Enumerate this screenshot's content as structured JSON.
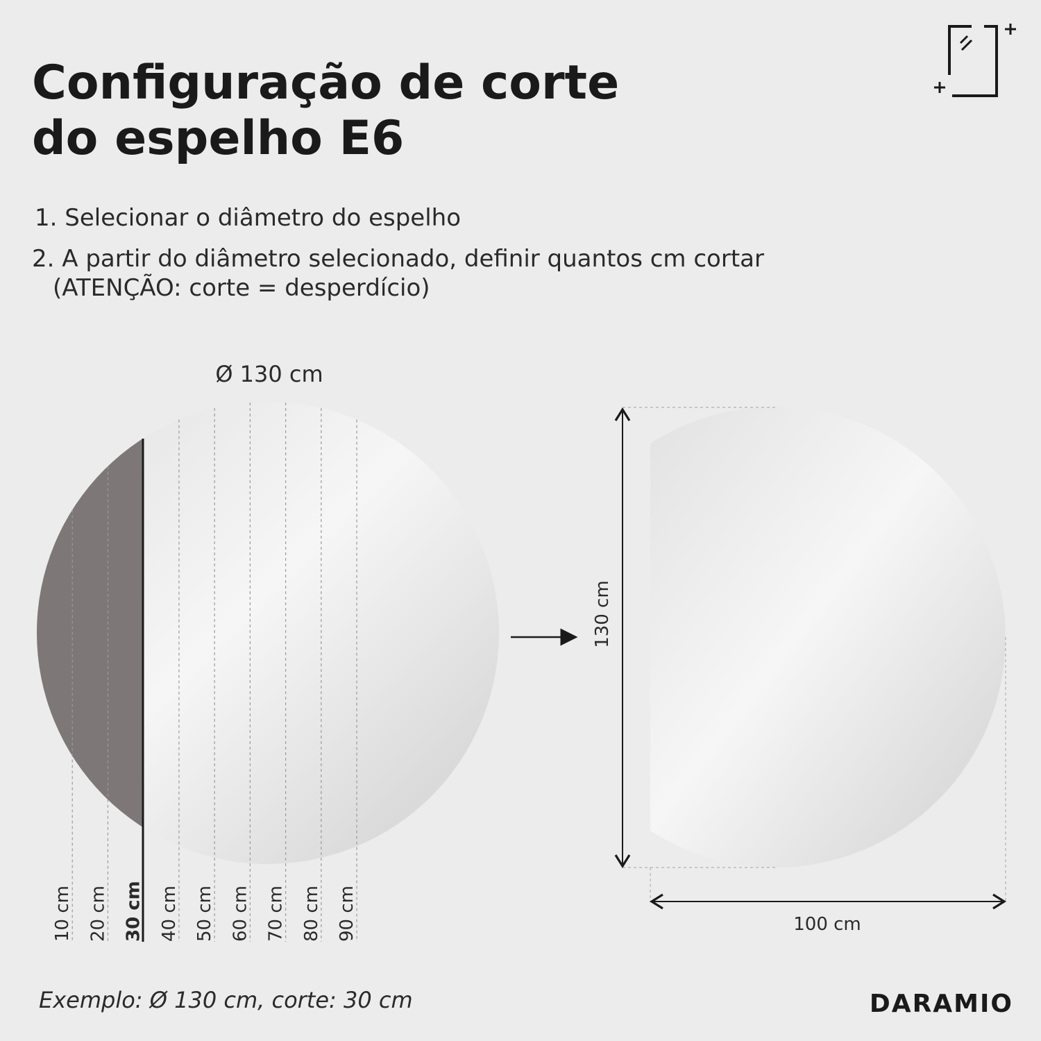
{
  "title": [
    "Configuração de corte",
    "do espelho E6"
  ],
  "steps": [
    "1. Selecionar o diâmetro do espelho",
    "2. A partir do diâmetro selecionado, definir quantos cm cortar",
    "(ATENÇÃO: corte = desperdício)"
  ],
  "diameter_label": "Ø 130 cm",
  "cut_labels": [
    "10 cm",
    "20 cm",
    "30 cm",
    "40 cm",
    "50 cm",
    "60 cm",
    "70 cm",
    "80 cm",
    "90 cm"
  ],
  "height_label": "130 cm",
  "width_label": "100 cm",
  "example": "Exemplo: Ø 130 cm, corte: 30 cm",
  "brand": "DARAMIO"
}
